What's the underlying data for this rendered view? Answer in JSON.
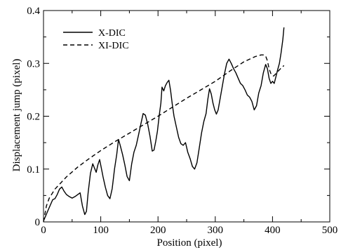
{
  "chart_data": {
    "type": "line",
    "xlabel": "Position  (pixel)",
    "ylabel": "Displacement jump   (pixel)",
    "xlim": [
      0,
      500
    ],
    "ylim": [
      0,
      0.4
    ],
    "x_ticks": [
      0,
      100,
      200,
      300,
      400,
      500
    ],
    "y_ticks": [
      0,
      0.1,
      0.2,
      0.3,
      0.4
    ],
    "x_tick_labels": [
      "0",
      "100",
      "200",
      "300",
      "400",
      "500"
    ],
    "y_tick_labels": [
      "0",
      "0.1",
      "0.2",
      "0.3",
      "0.4"
    ],
    "grid": false,
    "legend_position": "top-left",
    "series": [
      {
        "name": "X-DIC",
        "style": "solid",
        "color": "#000000",
        "points": [
          [
            0,
            0.002
          ],
          [
            4,
            0.012
          ],
          [
            8,
            0.022
          ],
          [
            12,
            0.032
          ],
          [
            16,
            0.042
          ],
          [
            20,
            0.044
          ],
          [
            24,
            0.052
          ],
          [
            28,
            0.062
          ],
          [
            32,
            0.066
          ],
          [
            36,
            0.058
          ],
          [
            40,
            0.052
          ],
          [
            45,
            0.048
          ],
          [
            50,
            0.045
          ],
          [
            55,
            0.048
          ],
          [
            60,
            0.052
          ],
          [
            64,
            0.055
          ],
          [
            68,
            0.03
          ],
          [
            72,
            0.014
          ],
          [
            75,
            0.02
          ],
          [
            78,
            0.055
          ],
          [
            82,
            0.092
          ],
          [
            86,
            0.11
          ],
          [
            89,
            0.102
          ],
          [
            92,
            0.094
          ],
          [
            95,
            0.108
          ],
          [
            98,
            0.118
          ],
          [
            101,
            0.102
          ],
          [
            104,
            0.085
          ],
          [
            108,
            0.066
          ],
          [
            112,
            0.05
          ],
          [
            116,
            0.044
          ],
          [
            120,
            0.063
          ],
          [
            124,
            0.1
          ],
          [
            128,
            0.128
          ],
          [
            131,
            0.156
          ],
          [
            134,
            0.145
          ],
          [
            138,
            0.128
          ],
          [
            142,
            0.108
          ],
          [
            146,
            0.086
          ],
          [
            150,
            0.078
          ],
          [
            154,
            0.11
          ],
          [
            158,
            0.132
          ],
          [
            162,
            0.145
          ],
          [
            166,
            0.165
          ],
          [
            170,
            0.185
          ],
          [
            174,
            0.205
          ],
          [
            178,
            0.202
          ],
          [
            182,
            0.185
          ],
          [
            186,
            0.162
          ],
          [
            190,
            0.134
          ],
          [
            193,
            0.136
          ],
          [
            196,
            0.152
          ],
          [
            199,
            0.172
          ],
          [
            202,
            0.2
          ],
          [
            205,
            0.225
          ],
          [
            207,
            0.255
          ],
          [
            210,
            0.248
          ],
          [
            213,
            0.258
          ],
          [
            216,
            0.264
          ],
          [
            219,
            0.268
          ],
          [
            222,
            0.248
          ],
          [
            225,
            0.222
          ],
          [
            228,
            0.2
          ],
          [
            232,
            0.18
          ],
          [
            236,
            0.16
          ],
          [
            240,
            0.148
          ],
          [
            244,
            0.145
          ],
          [
            248,
            0.15
          ],
          [
            252,
            0.132
          ],
          [
            256,
            0.12
          ],
          [
            260,
            0.105
          ],
          [
            264,
            0.1
          ],
          [
            268,
            0.112
          ],
          [
            272,
            0.14
          ],
          [
            276,
            0.168
          ],
          [
            280,
            0.19
          ],
          [
            284,
            0.205
          ],
          [
            287,
            0.232
          ],
          [
            290,
            0.252
          ],
          [
            293,
            0.242
          ],
          [
            296,
            0.225
          ],
          [
            299,
            0.212
          ],
          [
            302,
            0.204
          ],
          [
            305,
            0.212
          ],
          [
            308,
            0.23
          ],
          [
            312,
            0.255
          ],
          [
            316,
            0.28
          ],
          [
            320,
            0.3
          ],
          [
            324,
            0.308
          ],
          [
            328,
            0.3
          ],
          [
            332,
            0.29
          ],
          [
            336,
            0.282
          ],
          [
            340,
            0.272
          ],
          [
            344,
            0.262
          ],
          [
            348,
            0.258
          ],
          [
            352,
            0.25
          ],
          [
            356,
            0.24
          ],
          [
            360,
            0.236
          ],
          [
            364,
            0.228
          ],
          [
            368,
            0.212
          ],
          [
            372,
            0.22
          ],
          [
            376,
            0.244
          ],
          [
            380,
            0.258
          ],
          [
            384,
            0.282
          ],
          [
            388,
            0.298
          ],
          [
            391,
            0.29
          ],
          [
            394,
            0.272
          ],
          [
            397,
            0.262
          ],
          [
            400,
            0.266
          ],
          [
            403,
            0.262
          ],
          [
            406,
            0.275
          ],
          [
            409,
            0.288
          ],
          [
            412,
            0.3
          ],
          [
            415,
            0.32
          ],
          [
            418,
            0.345
          ],
          [
            420,
            0.368
          ]
        ]
      },
      {
        "name": "XI-DIC",
        "style": "dashed",
        "color": "#000000",
        "points": [
          [
            0,
            0.0
          ],
          [
            5,
            0.03
          ],
          [
            10,
            0.045
          ],
          [
            20,
            0.062
          ],
          [
            40,
            0.085
          ],
          [
            60,
            0.104
          ],
          [
            80,
            0.12
          ],
          [
            100,
            0.135
          ],
          [
            125,
            0.152
          ],
          [
            150,
            0.168
          ],
          [
            175,
            0.184
          ],
          [
            200,
            0.2
          ],
          [
            225,
            0.217
          ],
          [
            250,
            0.234
          ],
          [
            275,
            0.25
          ],
          [
            300,
            0.266
          ],
          [
            325,
            0.285
          ],
          [
            350,
            0.303
          ],
          [
            370,
            0.313
          ],
          [
            380,
            0.316
          ],
          [
            385,
            0.316
          ],
          [
            388,
            0.314
          ],
          [
            391,
            0.305
          ],
          [
            394,
            0.29
          ],
          [
            398,
            0.278
          ],
          [
            402,
            0.276
          ],
          [
            408,
            0.283
          ],
          [
            414,
            0.29
          ],
          [
            420,
            0.296
          ]
        ]
      }
    ]
  }
}
